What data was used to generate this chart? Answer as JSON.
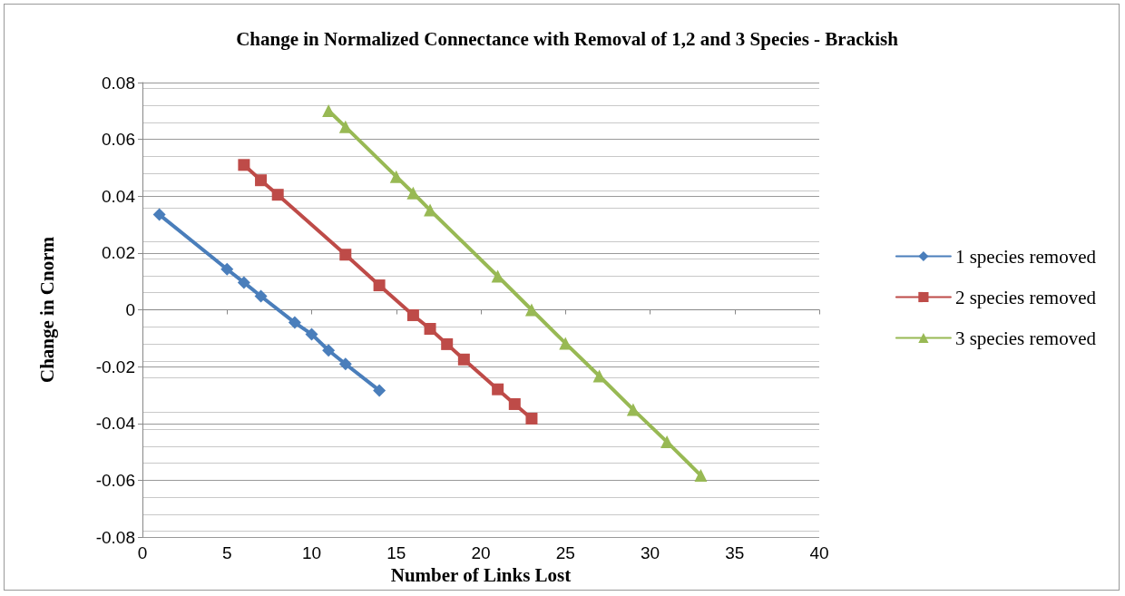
{
  "chart_data": {
    "type": "line",
    "title": "Change in Normalized Connectance with Removal of 1,2 and 3 Species - Brackish",
    "xlabel": "Number of Links Lost",
    "ylabel": "Change in Cnorm",
    "xlim": [
      0,
      40
    ],
    "xticks": [
      0,
      5,
      10,
      15,
      20,
      25,
      30,
      35,
      40
    ],
    "ylim": [
      -0.08,
      0.08
    ],
    "yticks": [
      -0.08,
      -0.06,
      -0.04,
      -0.02,
      0,
      0.02,
      0.04,
      0.06,
      0.08
    ],
    "grid": "y",
    "legend": "right",
    "line_style": "solid",
    "series": [
      {
        "name": "1 species removed",
        "color": "#4a7ebb",
        "marker": "diamond",
        "x": [
          1,
          5,
          6,
          7,
          9,
          10,
          11,
          12,
          14
        ],
        "values": [
          0.0335,
          0.0143,
          0.0096,
          0.0048,
          -0.0045,
          -0.0086,
          -0.0143,
          -0.0191,
          -0.0284
        ]
      },
      {
        "name": "2 species removed",
        "color": "#be4b48",
        "marker": "square",
        "x": [
          6,
          7,
          8,
          12,
          14,
          16,
          17,
          18,
          19,
          21,
          22,
          23
        ],
        "values": [
          0.051,
          0.0456,
          0.0405,
          0.0194,
          0.0086,
          -0.0019,
          -0.0067,
          -0.0121,
          -0.0175,
          -0.028,
          -0.0332,
          -0.0383
        ]
      },
      {
        "name": "3 species removed",
        "color": "#98b954",
        "marker": "triangle",
        "x": [
          11,
          12,
          15,
          16,
          17,
          21,
          23,
          25,
          27,
          29,
          31,
          33
        ],
        "values": [
          0.0701,
          0.0644,
          0.0469,
          0.0411,
          0.0351,
          0.0118,
          0,
          -0.0118,
          -0.0233,
          -0.0351,
          -0.0465,
          -0.0583
        ]
      }
    ]
  }
}
